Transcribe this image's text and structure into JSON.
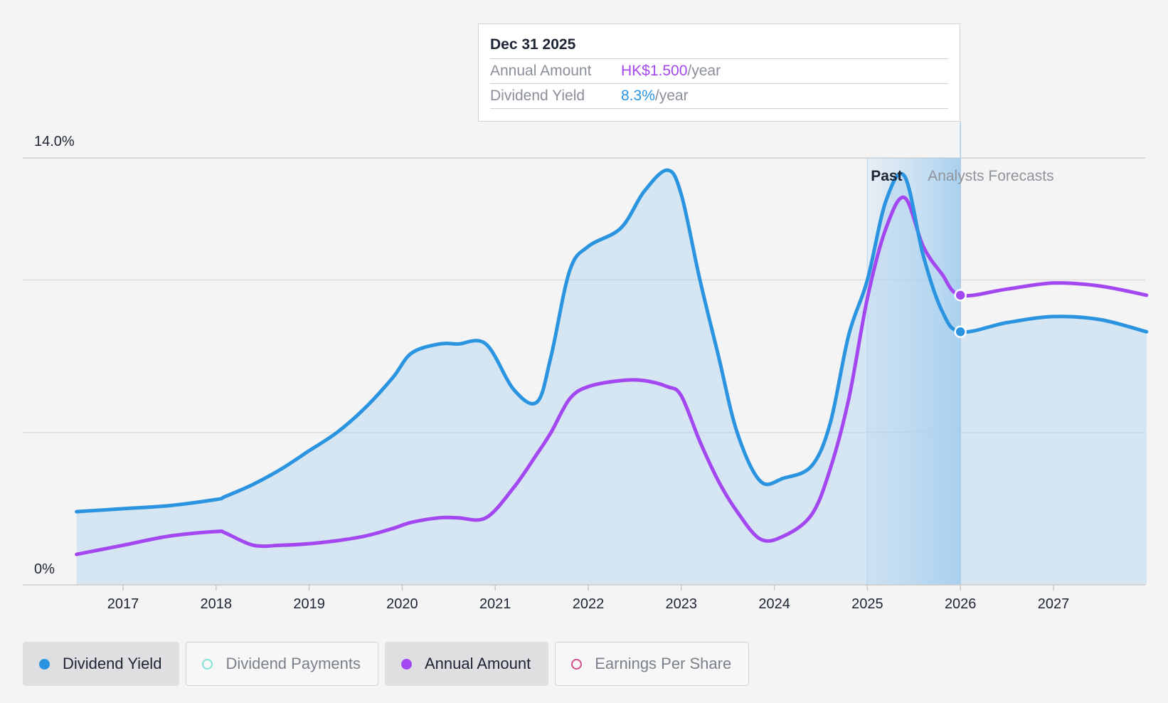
{
  "tooltip": {
    "date": "Dec 31 2025",
    "rows": [
      {
        "label": "Annual Amount",
        "value": "HK$1.500",
        "unit": "/year"
      },
      {
        "label": "Dividend Yield",
        "value": "8.3%",
        "unit": "/year"
      }
    ]
  },
  "legend": [
    {
      "label": "Dividend Yield",
      "active": true,
      "color": "#2a94e0",
      "filled": true
    },
    {
      "label": "Dividend Payments",
      "active": false,
      "color": "#7fe3d9",
      "filled": false
    },
    {
      "label": "Annual Amount",
      "active": true,
      "color": "#a347f0",
      "filled": true
    },
    {
      "label": "Earnings Per Share",
      "active": false,
      "color": "#d0508a",
      "filled": false
    }
  ],
  "chart_data": {
    "type": "line",
    "title": "",
    "xlabel": "",
    "ylabel": "",
    "y_tick_labels": [
      "14.0%",
      "0%"
    ],
    "ylim": [
      0,
      14
    ],
    "xlim": [
      2016.0,
      2028.0
    ],
    "x_ticks": [
      2017,
      2018,
      2019,
      2020,
      2021,
      2022,
      2023,
      2024,
      2025,
      2026,
      2027
    ],
    "grid": true,
    "regions": [
      {
        "label": "Past",
        "from": 2025.0,
        "to": 2026.0
      },
      {
        "label": "Analysts Forecasts",
        "from": 2026.0,
        "to": 2028.0
      }
    ],
    "colors": {
      "Dividend Yield": "#2a94e0",
      "Annual Amount": "#a347f0"
    },
    "series": [
      {
        "name": "Dividend Yield",
        "x": [
          2016.5,
          2017.0,
          2017.5,
          2018.0,
          2018.1,
          2018.4,
          2018.7,
          2019.0,
          2019.3,
          2019.6,
          2019.9,
          2020.1,
          2020.4,
          2020.6,
          2020.9,
          2021.2,
          2021.45,
          2021.6,
          2021.8,
          2022.0,
          2022.35,
          2022.6,
          2022.85,
          2023.0,
          2023.2,
          2023.4,
          2023.6,
          2023.85,
          2024.1,
          2024.4,
          2024.6,
          2024.8,
          2025.0,
          2025.2,
          2025.4,
          2025.6,
          2025.8,
          2026.0,
          2026.5,
          2027.0,
          2027.5,
          2028.0
        ],
        "values": [
          2.4,
          2.5,
          2.6,
          2.8,
          2.9,
          3.3,
          3.8,
          4.4,
          5.0,
          5.8,
          6.8,
          7.6,
          7.9,
          7.9,
          7.9,
          6.4,
          6.0,
          7.5,
          10.3,
          11.1,
          11.7,
          12.9,
          13.6,
          12.8,
          10.0,
          7.5,
          5.0,
          3.4,
          3.5,
          3.9,
          5.3,
          8.2,
          10.0,
          12.6,
          13.4,
          10.8,
          9.0,
          8.3,
          8.6,
          8.8,
          8.7,
          8.3
        ]
      },
      {
        "name": "Annual Amount",
        "x": [
          2016.5,
          2017.0,
          2017.5,
          2018.0,
          2018.1,
          2018.4,
          2018.7,
          2019.0,
          2019.3,
          2019.6,
          2019.9,
          2020.1,
          2020.4,
          2020.6,
          2020.9,
          2021.2,
          2021.45,
          2021.6,
          2021.8,
          2022.0,
          2022.35,
          2022.6,
          2022.85,
          2023.0,
          2023.2,
          2023.4,
          2023.6,
          2023.85,
          2024.1,
          2024.4,
          2024.6,
          2024.8,
          2025.0,
          2025.2,
          2025.4,
          2025.6,
          2025.8,
          2026.0,
          2026.5,
          2027.0,
          2027.5,
          2028.0
        ],
        "values": [
          1.0,
          1.3,
          1.6,
          1.75,
          1.7,
          1.3,
          1.3,
          1.35,
          1.45,
          1.6,
          1.85,
          2.05,
          2.2,
          2.2,
          2.2,
          3.2,
          4.3,
          5.0,
          6.1,
          6.5,
          6.7,
          6.7,
          6.5,
          6.2,
          4.7,
          3.4,
          2.4,
          1.5,
          1.6,
          2.3,
          3.8,
          6.1,
          9.4,
          11.7,
          12.7,
          11.1,
          10.2,
          9.5,
          9.7,
          9.9,
          9.8,
          9.5
        ]
      }
    ],
    "markers": [
      {
        "series": "Dividend Yield",
        "x": 2026.0,
        "value": 8.3
      },
      {
        "series": "Annual Amount",
        "x": 2026.0,
        "value": 9.5
      }
    ]
  }
}
